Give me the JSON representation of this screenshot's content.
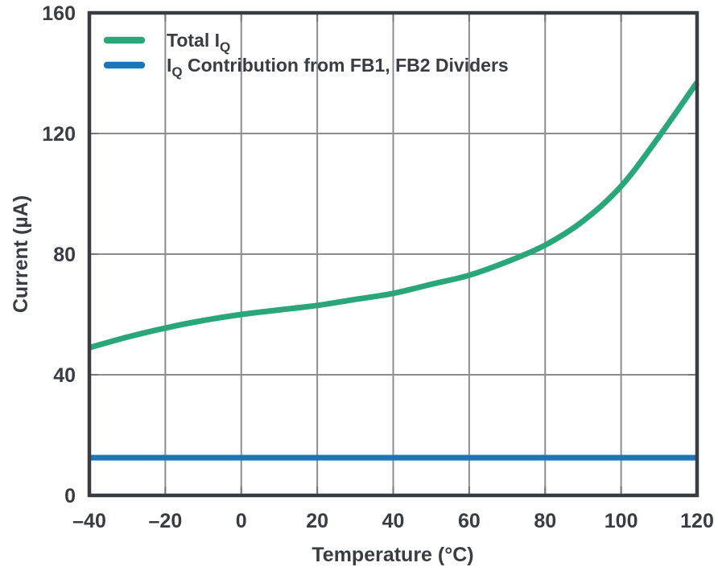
{
  "page": {
    "background": "#ffffff"
  },
  "chart_data": {
    "type": "line",
    "title": "",
    "xlabel": "Temperature (°C)",
    "ylabel": "Current (µA)",
    "xlim": [
      -40,
      120
    ],
    "ylim": [
      0,
      160
    ],
    "grid": true,
    "legend_position": "inside-top-left",
    "xticks": {
      "values": [
        -40,
        -20,
        0,
        20,
        40,
        60,
        80,
        100,
        120
      ],
      "labels": [
        "–40",
        "–20",
        "0",
        "20",
        "40",
        "60",
        "80",
        "100",
        "120"
      ]
    },
    "yticks": {
      "values": [
        0,
        40,
        80,
        120,
        160
      ],
      "labels": [
        "0",
        "40",
        "80",
        "120",
        "160"
      ]
    },
    "colors": {
      "axis_border": "#3a3c44",
      "gridline": "#8b8d91",
      "tick_mark": "#75777b",
      "label_text": "#3a3c44",
      "series_green": "#2aa779",
      "series_blue": "#1b75bb"
    },
    "series": [
      {
        "name": "Total IQ",
        "name_parts": [
          {
            "text": "Total I"
          },
          {
            "text": "Q",
            "sub": true
          }
        ],
        "color": "#2aa779",
        "x": [
          -40,
          -30,
          -20,
          -10,
          0,
          10,
          20,
          30,
          40,
          50,
          60,
          70,
          80,
          90,
          100,
          110,
          120
        ],
        "values": [
          49,
          52.5,
          55.5,
          58,
          60,
          61.5,
          63,
          65,
          67,
          70,
          73,
          77.5,
          83,
          91,
          102.5,
          119,
          137
        ]
      },
      {
        "name": "IQ Contribution from FB1, FB2 Dividers",
        "name_parts": [
          {
            "text": "I"
          },
          {
            "text": "Q",
            "sub": true
          },
          {
            "text": " Contribution from FB1, FB2 Dividers"
          }
        ],
        "color": "#1b75bb",
        "x": [
          -40,
          120
        ],
        "values": [
          12.5,
          12.5
        ]
      }
    ]
  }
}
